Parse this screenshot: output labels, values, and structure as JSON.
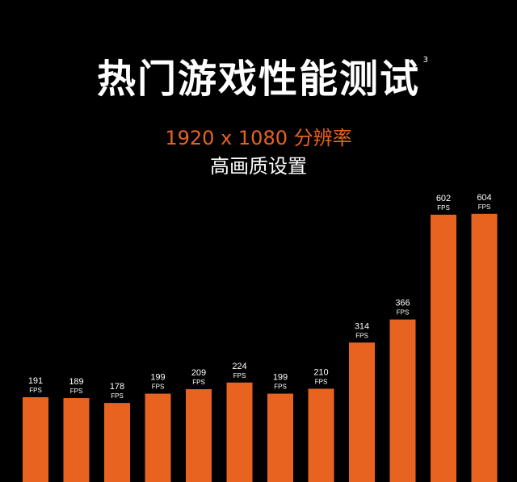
{
  "header": {
    "title": "热门游戏性能测试",
    "title_superscript": "3",
    "subtitle": "1920 x 1080 分辨率",
    "subtitle2": "高画质设置"
  },
  "colors": {
    "background": "#000000",
    "bar": "#E8631F",
    "subtitle_accent": "#E8631F",
    "text": "#ffffff"
  },
  "chart_data": {
    "type": "bar",
    "values": [
      191,
      189,
      178,
      199,
      209,
      224,
      199,
      210,
      314,
      366,
      602,
      604
    ],
    "value_unit": "FPS",
    "title": "热门游戏性能测试",
    "subtitle": "1920 x 1080 分辨率 高画质设置",
    "grid": false,
    "legend": "none"
  }
}
